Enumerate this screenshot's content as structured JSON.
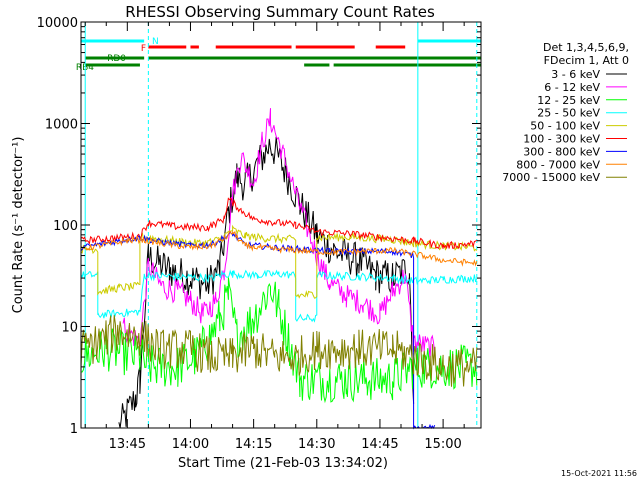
{
  "chart_data": {
    "type": "line",
    "title": "RHESSI Observing Summary Count Rates",
    "xlabel": "Start Time (21-Feb-03 13:34:02)",
    "ylabel": "Count Rate (s⁻¹ detector⁻¹)",
    "y_scale": "log",
    "ylim": [
      1,
      10000
    ],
    "xlim": [
      "13:34",
      "15:09"
    ],
    "x_ticks": [
      "13:45",
      "14:00",
      "14:15",
      "14:30",
      "14:45",
      "15:00"
    ],
    "y_ticks": [
      "1",
      "10",
      "100",
      "1000",
      "10000"
    ],
    "footer": "15-Oct-2021 11:56",
    "legend_header": [
      "Det 1,3,4,5,6,9,",
      "FDecim 1, Att 0"
    ],
    "legend_position": "right",
    "attenuator_transitions": [
      "13:35",
      "13:50",
      "14:54",
      "15:08"
    ],
    "flag_labels": {
      "n": "N",
      "f": "F",
      "rd": "RD0",
      "rb": "RB4"
    },
    "flag_bars": {
      "n": {
        "color": "#00ffff",
        "intervals": [
          [
            "13:34",
            "13:49"
          ],
          [
            "14:54",
            "15:09"
          ]
        ]
      },
      "f": {
        "color": "#ff0000",
        "intervals": [
          [
            "13:50",
            "13:59"
          ],
          [
            "14:00",
            "14:02"
          ],
          [
            "14:06",
            "14:24"
          ],
          [
            "14:25",
            "14:39"
          ],
          [
            "14:44",
            "14:51"
          ]
        ]
      },
      "rd": {
        "color": "#008000",
        "intervals": [
          [
            "13:35",
            "13:49"
          ],
          [
            "13:50",
            "15:09"
          ]
        ]
      },
      "rb": {
        "color": "#008000",
        "intervals": [
          [
            "13:35",
            "13:48"
          ],
          [
            "14:27",
            "14:33"
          ],
          [
            "14:34",
            "15:09"
          ]
        ]
      }
    },
    "series": [
      {
        "name": "3 - 6 keV",
        "color": "#000000",
        "noise": 0.18,
        "points": [
          [
            "13:43",
            1
          ],
          [
            "13:47",
            2
          ],
          [
            "13:48",
            3
          ],
          [
            "13:50",
            48
          ],
          [
            "13:55",
            36
          ],
          [
            "14:00",
            30
          ],
          [
            "14:04",
            26
          ],
          [
            "14:07",
            38
          ],
          [
            "14:09",
            130
          ],
          [
            "14:11",
            300
          ],
          [
            "14:13",
            250
          ],
          [
            "14:16",
            400
          ],
          [
            "14:19",
            630
          ],
          [
            "14:22",
            380
          ],
          [
            "14:26",
            160
          ],
          [
            "14:30",
            80
          ],
          [
            "14:34",
            56
          ],
          [
            "14:40",
            44
          ],
          [
            "14:44",
            32
          ],
          [
            "14:48",
            30
          ],
          [
            "14:52",
            38
          ],
          [
            "14:53",
            2
          ]
        ]
      },
      {
        "name": "6 - 12 keV",
        "color": "#ff00ff",
        "noise": 0.12,
        "points": [
          [
            "13:44",
            10
          ],
          [
            "13:48",
            7
          ],
          [
            "13:50",
            40
          ],
          [
            "13:53",
            25
          ],
          [
            "13:57",
            22
          ],
          [
            "14:00",
            18
          ],
          [
            "14:03",
            13
          ],
          [
            "14:06",
            18
          ],
          [
            "14:08",
            36
          ],
          [
            "14:10",
            200
          ],
          [
            "14:12",
            480
          ],
          [
            "14:15",
            260
          ],
          [
            "14:17",
            650
          ],
          [
            "14:19",
            1100
          ],
          [
            "14:22",
            500
          ],
          [
            "14:26",
            150
          ],
          [
            "14:30",
            50
          ],
          [
            "14:33",
            27
          ],
          [
            "14:37",
            20
          ],
          [
            "14:41",
            17
          ],
          [
            "14:45",
            13
          ],
          [
            "14:48",
            22
          ],
          [
            "14:51",
            32
          ],
          [
            "14:53",
            7
          ],
          [
            "14:58",
            6
          ]
        ]
      },
      {
        "name": "12 - 25 keV",
        "color": "#00ff00",
        "noise": 0.22,
        "points": [
          [
            "13:34",
            5
          ],
          [
            "13:40",
            6
          ],
          [
            "13:48",
            5
          ],
          [
            "13:50",
            4
          ],
          [
            "13:57",
            4
          ],
          [
            "14:01",
            5
          ],
          [
            "14:04",
            7
          ],
          [
            "14:07",
            12
          ],
          [
            "14:09",
            20
          ],
          [
            "14:11",
            8
          ],
          [
            "14:15",
            12
          ],
          [
            "14:19",
            25
          ],
          [
            "14:21",
            15
          ],
          [
            "14:23",
            8
          ],
          [
            "14:26",
            3
          ],
          [
            "14:30",
            3
          ],
          [
            "14:37",
            3
          ],
          [
            "14:42",
            3
          ],
          [
            "14:48",
            3
          ],
          [
            "14:53",
            4
          ],
          [
            "15:00",
            4
          ],
          [
            "15:08",
            4
          ]
        ]
      },
      {
        "name": "25 - 50 keV",
        "color": "#00ffff",
        "noise": 0.04,
        "points": [
          [
            "13:34",
            32
          ],
          [
            "13:38",
            32
          ],
          [
            "13:38",
            13
          ],
          [
            "13:48",
            14
          ],
          [
            "13:49",
            32
          ],
          [
            "13:57",
            31
          ],
          [
            "14:05",
            30
          ],
          [
            "14:08",
            33
          ],
          [
            "14:10",
            33
          ],
          [
            "14:16",
            32
          ],
          [
            "14:21",
            33
          ],
          [
            "14:25",
            32
          ],
          [
            "14:25",
            12
          ],
          [
            "14:30",
            12
          ],
          [
            "14:30",
            32
          ],
          [
            "14:40",
            31
          ],
          [
            "14:48",
            30
          ],
          [
            "14:53",
            28
          ],
          [
            "15:00",
            29
          ],
          [
            "15:08",
            30
          ]
        ]
      },
      {
        "name": "50 - 100 keV",
        "color": "#cccc00",
        "noise": 0.04,
        "points": [
          [
            "13:34",
            58
          ],
          [
            "13:38",
            58
          ],
          [
            "13:38",
            22
          ],
          [
            "13:43",
            24
          ],
          [
            "13:48",
            25
          ],
          [
            "13:48",
            78
          ],
          [
            "13:53",
            72
          ],
          [
            "13:58",
            68
          ],
          [
            "14:03",
            66
          ],
          [
            "14:07",
            72
          ],
          [
            "14:10",
            90
          ],
          [
            "14:13",
            78
          ],
          [
            "14:18",
            74
          ],
          [
            "14:25",
            72
          ],
          [
            "14:25",
            20
          ],
          [
            "14:30",
            21
          ],
          [
            "14:30",
            75
          ],
          [
            "14:38",
            76
          ],
          [
            "14:48",
            72
          ],
          [
            "14:53",
            66
          ],
          [
            "15:00",
            62
          ],
          [
            "15:08",
            60
          ]
        ]
      },
      {
        "name": "100 - 300 keV",
        "color": "#ff0000",
        "noise": 0.035,
        "points": [
          [
            "13:34",
            70
          ],
          [
            "13:48",
            78
          ],
          [
            "13:50",
            105
          ],
          [
            "13:57",
            96
          ],
          [
            "14:04",
            94
          ],
          [
            "14:08",
            115
          ],
          [
            "14:09",
            180
          ],
          [
            "14:12",
            140
          ],
          [
            "14:15",
            115
          ],
          [
            "14:20",
            106
          ],
          [
            "14:25",
            100
          ],
          [
            "14:30",
            86
          ],
          [
            "14:38",
            82
          ],
          [
            "14:45",
            76
          ],
          [
            "14:53",
            70
          ],
          [
            "15:00",
            62
          ],
          [
            "15:08",
            66
          ]
        ]
      },
      {
        "name": "300 - 800 keV",
        "color": "#0000ff",
        "noise": 0.03,
        "points": [
          [
            "13:34",
            60
          ],
          [
            "13:45",
            72
          ],
          [
            "13:48",
            75
          ],
          [
            "13:53",
            68
          ],
          [
            "14:00",
            63
          ],
          [
            "14:05",
            64
          ],
          [
            "14:08",
            75
          ],
          [
            "14:10",
            82
          ],
          [
            "14:13",
            64
          ],
          [
            "14:20",
            60
          ],
          [
            "14:26",
            58
          ],
          [
            "14:33",
            55
          ],
          [
            "14:40",
            55
          ],
          [
            "14:48",
            55
          ],
          [
            "14:53",
            50
          ],
          [
            "14:53",
            1
          ],
          [
            "14:58",
            1
          ]
        ]
      },
      {
        "name": "800 - 7000 keV",
        "color": "#ff8000",
        "noise": 0.03,
        "points": [
          [
            "13:34",
            58
          ],
          [
            "13:45",
            70
          ],
          [
            "13:48",
            72
          ],
          [
            "13:53",
            66
          ],
          [
            "14:00",
            60
          ],
          [
            "14:05",
            62
          ],
          [
            "14:08",
            74
          ],
          [
            "14:10",
            85
          ],
          [
            "14:13",
            62
          ],
          [
            "14:20",
            58
          ],
          [
            "14:26",
            56
          ],
          [
            "14:33",
            54
          ],
          [
            "14:40",
            55
          ],
          [
            "14:48",
            56
          ],
          [
            "14:53",
            52
          ],
          [
            "15:00",
            45
          ],
          [
            "15:08",
            42
          ]
        ]
      },
      {
        "name": "7000 - 15000 keV",
        "color": "#808000",
        "noise": 0.2,
        "points": [
          [
            "13:34",
            6
          ],
          [
            "13:38",
            7
          ],
          [
            "13:43",
            9
          ],
          [
            "13:48",
            8
          ],
          [
            "13:53",
            6
          ],
          [
            "14:00",
            6
          ],
          [
            "14:05",
            5
          ],
          [
            "14:10",
            5
          ],
          [
            "14:15",
            6
          ],
          [
            "14:20",
            5
          ],
          [
            "14:25",
            5
          ],
          [
            "14:30",
            6
          ],
          [
            "14:40",
            6
          ],
          [
            "14:48",
            6
          ],
          [
            "14:53",
            5
          ],
          [
            "15:00",
            4
          ],
          [
            "15:08",
            4
          ]
        ]
      }
    ]
  }
}
